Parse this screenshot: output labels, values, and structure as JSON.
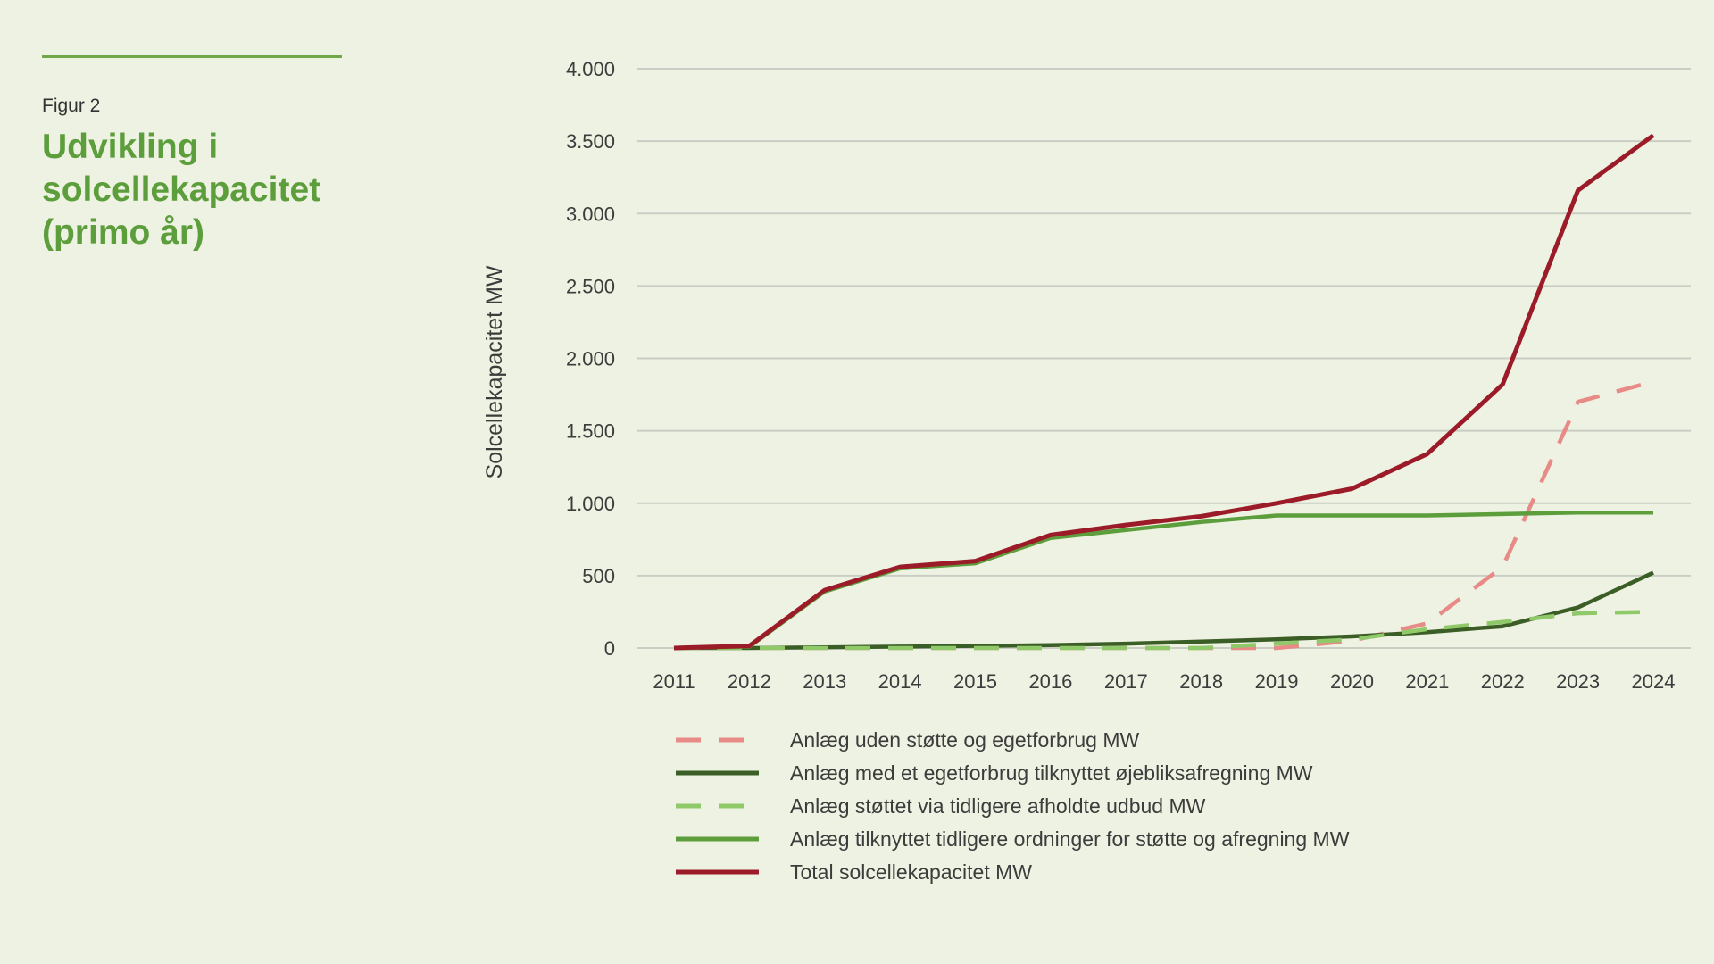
{
  "header": {
    "figure_label": "Figur 2",
    "title": "Udvikling i solcellekapacitet (primo år)"
  },
  "colors": {
    "background": "#eef2e2",
    "title_green": "#5d9e3c",
    "rule_green": "#6ea84b",
    "gridline": "#c9cdc4"
  },
  "chart_data": {
    "type": "line",
    "title": "Udvikling i solcellekapacitet (primo år)",
    "xlabel": "",
    "ylabel": "Solcellekapacitet MW",
    "ylim": [
      0,
      4000
    ],
    "y_ticks": [
      0,
      500,
      1000,
      1500,
      2000,
      2500,
      3000,
      3500,
      4000
    ],
    "y_tick_labels": [
      "0",
      "500",
      "1.000",
      "1.500",
      "2.000",
      "2.500",
      "3.000",
      "3.500",
      "4.000"
    ],
    "grid": true,
    "legend_position": "bottom",
    "categories": [
      "2011",
      "2012",
      "2013",
      "2014",
      "2015",
      "2016",
      "2017",
      "2018",
      "2019",
      "2020",
      "2021",
      "2022",
      "2023",
      "2024"
    ],
    "series": [
      {
        "name": "Anlæg uden støtte og egetforbrug MW",
        "color": "#e88a86",
        "dash": true,
        "values": [
          0,
          0,
          0,
          0,
          0,
          0,
          0,
          0,
          0,
          50,
          170,
          560,
          1700,
          1840
        ]
      },
      {
        "name": "Anlæg med et egetforbrug tilknyttet øjebliksafregning MW",
        "color": "#3b5e27",
        "dash": false,
        "values": [
          0,
          0,
          5,
          10,
          15,
          20,
          30,
          45,
          60,
          80,
          110,
          150,
          280,
          520
        ]
      },
      {
        "name": "Anlæg støttet via tidligere afholdte udbud MW",
        "color": "#8fc96a",
        "dash": true,
        "values": [
          0,
          0,
          0,
          0,
          0,
          0,
          0,
          0,
          30,
          60,
          130,
          180,
          240,
          250
        ]
      },
      {
        "name": "Anlæg tilknyttet tidligere ordninger for støtte og afregning MW",
        "color": "#5d9e3c",
        "dash": false,
        "values": [
          0,
          10,
          390,
          550,
          585,
          760,
          815,
          870,
          915,
          915,
          915,
          925,
          935,
          935
        ]
      },
      {
        "name": "Total solcellekapacitet MW",
        "color": "#9b1b28",
        "dash": false,
        "values": [
          0,
          15,
          400,
          560,
          600,
          780,
          850,
          910,
          1000,
          1100,
          1340,
          1820,
          3160,
          3540
        ]
      }
    ]
  }
}
